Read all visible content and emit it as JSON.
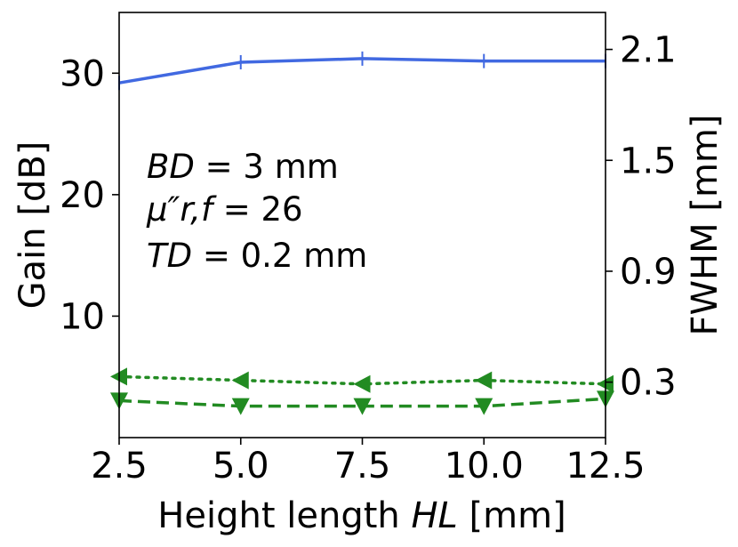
{
  "chart_data": {
    "type": "line",
    "x": [
      2.5,
      5.0,
      7.5,
      10.0,
      12.5
    ],
    "xlabel": {
      "text": "Height length ",
      "italic": "HL",
      "unit": " [mm]"
    },
    "ylabel": "Gain [dB]",
    "y2label": "FWHM [mm]",
    "xlim": [
      2.5,
      12.5
    ],
    "ylim": [
      0,
      35
    ],
    "y2lim": [
      0.0,
      2.3
    ],
    "xticks": [
      "2.5",
      "5.0",
      "7.5",
      "10.0",
      "12.5"
    ],
    "yticks": [
      {
        "value": 10,
        "label": "10"
      },
      {
        "value": 20,
        "label": "20"
      },
      {
        "value": 30,
        "label": "30"
      }
    ],
    "y2ticks": [
      {
        "value": 0.3,
        "label": "0.3"
      },
      {
        "value": 0.9,
        "label": "0.9"
      },
      {
        "value": 1.5,
        "label": "1.5"
      },
      {
        "value": 2.1,
        "label": "2.1"
      }
    ],
    "series": [
      {
        "axis": "left",
        "values": [
          29.2,
          30.9,
          31.2,
          31.0,
          31.0
        ],
        "color": "#4169e1",
        "style": "solid",
        "marker": "plus"
      },
      {
        "axis": "right",
        "values": [
          0.33,
          0.31,
          0.29,
          0.31,
          0.29
        ],
        "color": "#228b22",
        "style": "dotted",
        "marker": "triangle-left"
      },
      {
        "axis": "right",
        "values": [
          0.2,
          0.17,
          0.17,
          0.17,
          0.21
        ],
        "color": "#228b22",
        "style": "dashed",
        "marker": "triangle-down"
      }
    ],
    "annotations": [
      {
        "var": "BD",
        "text": " = 3 mm"
      },
      {
        "var": "μ″r,f",
        "text": " = 26"
      },
      {
        "var": "TD",
        "text": " = 0.2 mm"
      }
    ],
    "grid": false
  }
}
